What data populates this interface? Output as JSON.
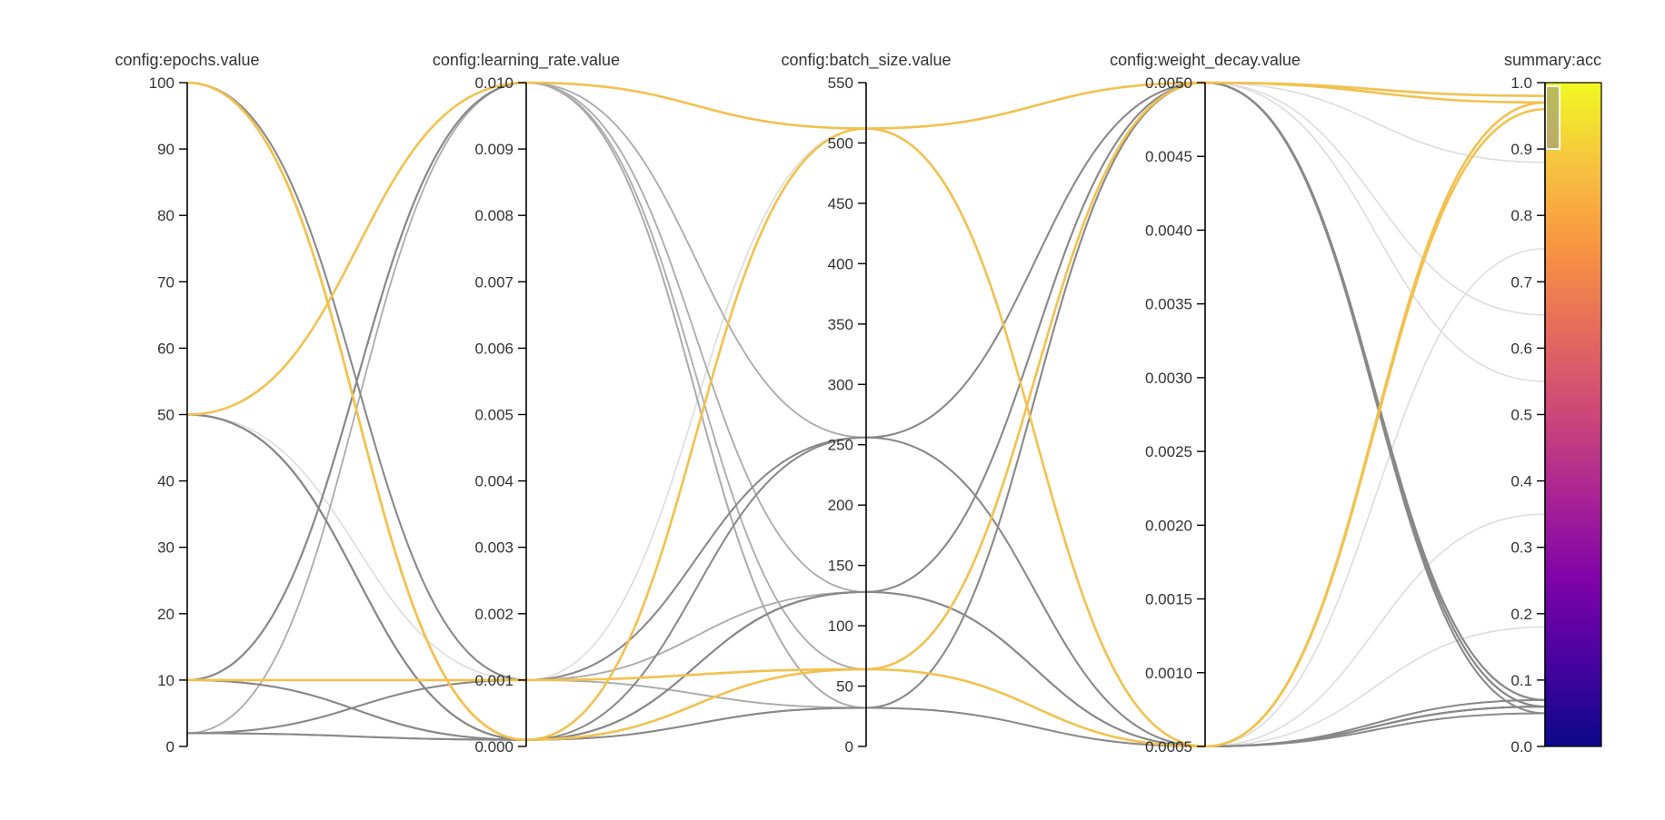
{
  "chart_data": {
    "type": "parallel-coordinates",
    "axes": [
      {
        "key": "epochs",
        "label": "config:epochs.value",
        "range": [
          0,
          100
        ],
        "ticks": [
          "0",
          "10",
          "20",
          "30",
          "40",
          "50",
          "60",
          "70",
          "80",
          "90",
          "100"
        ]
      },
      {
        "key": "learning_rate",
        "label": "config:learning_rate.value",
        "range": [
          0,
          0.01
        ],
        "ticks": [
          "0.000",
          "0.001",
          "0.002",
          "0.003",
          "0.004",
          "0.005",
          "0.006",
          "0.007",
          "0.008",
          "0.009",
          "0.010"
        ]
      },
      {
        "key": "batch_size",
        "label": "config:batch_size.value",
        "range": [
          0,
          550
        ],
        "ticks": [
          "0",
          "50",
          "100",
          "150",
          "200",
          "250",
          "300",
          "350",
          "400",
          "450",
          "500",
          "550"
        ]
      },
      {
        "key": "weight_decay",
        "label": "config:weight_decay.value",
        "range": [
          0.0005,
          0.005
        ],
        "ticks": [
          "0.0005",
          "0.0010",
          "0.0015",
          "0.0020",
          "0.0025",
          "0.0030",
          "0.0035",
          "0.0040",
          "0.0045",
          "0.0050"
        ]
      },
      {
        "key": "acc",
        "label": "summary:acc",
        "range": [
          0,
          1
        ],
        "ticks": [
          "0.0",
          "0.1",
          "0.2",
          "0.3",
          "0.4",
          "0.5",
          "0.6",
          "0.7",
          "0.8",
          "0.9",
          "1.0"
        ]
      }
    ],
    "colorscale": {
      "metric": "summary:acc",
      "range": [
        0,
        1
      ],
      "stops": [
        "#0d0887",
        "#46039f",
        "#7e03a8",
        "#a92395",
        "#cc4778",
        "#e56b5d",
        "#f89441",
        "#f7c240",
        "#f0f921"
      ]
    },
    "selection": {
      "axis": "acc",
      "range": [
        0.9,
        1.0
      ]
    },
    "colors": {
      "selected": "#f2c14e",
      "highlight": "#888888",
      "mid": "#aaaaaa",
      "faint": "#dcdcdc"
    },
    "runs": [
      {
        "epochs": 10,
        "learning_rate": 0.001,
        "batch_size": 64,
        "weight_decay": 0.005,
        "acc": 0.98,
        "style": "selected"
      },
      {
        "epochs": 50,
        "learning_rate": 0.01,
        "batch_size": 512,
        "weight_decay": 0.0005,
        "acc": 0.97,
        "style": "selected"
      },
      {
        "epochs": 100,
        "learning_rate": 0.0001,
        "batch_size": 512,
        "weight_decay": 0.005,
        "acc": 0.97,
        "style": "selected"
      },
      {
        "epochs": 100,
        "learning_rate": 0.0001,
        "batch_size": 64,
        "weight_decay": 0.0005,
        "acc": 0.96,
        "style": "selected"
      },
      {
        "epochs": 2,
        "learning_rate": 0.0001,
        "batch_size": 32,
        "weight_decay": 0.0005,
        "acc": 0.06,
        "style": "highlight"
      },
      {
        "epochs": 2,
        "learning_rate": 0.0001,
        "batch_size": 512,
        "weight_decay": 0.005,
        "acc": 0.07,
        "style": "highlight"
      },
      {
        "epochs": 2,
        "learning_rate": 0.001,
        "batch_size": 256,
        "weight_decay": 0.005,
        "acc": 0.05,
        "style": "highlight"
      },
      {
        "epochs": 10,
        "learning_rate": 0.01,
        "batch_size": 512,
        "weight_decay": 0.0005,
        "acc": 0.06,
        "style": "highlight"
      },
      {
        "epochs": 10,
        "learning_rate": 0.01,
        "batch_size": 512,
        "weight_decay": 0.005,
        "acc": 0.07,
        "style": "highlight"
      },
      {
        "epochs": 10,
        "learning_rate": 0.0001,
        "batch_size": 128,
        "weight_decay": 0.0005,
        "acc": 0.06,
        "style": "highlight"
      },
      {
        "epochs": 10,
        "learning_rate": 0.0001,
        "batch_size": 64,
        "weight_decay": 0.005,
        "acc": 0.06,
        "style": "highlight"
      },
      {
        "epochs": 50,
        "learning_rate": 0.0001,
        "batch_size": 32,
        "weight_decay": 0.005,
        "acc": 0.07,
        "style": "highlight"
      },
      {
        "epochs": 50,
        "learning_rate": 0.0001,
        "batch_size": 512,
        "weight_decay": 0.0005,
        "acc": 0.06,
        "style": "highlight"
      },
      {
        "epochs": 50,
        "learning_rate": 0.0001,
        "batch_size": 256,
        "weight_decay": 0.0005,
        "acc": 0.05,
        "style": "highlight"
      },
      {
        "epochs": 50,
        "learning_rate": 0.0001,
        "batch_size": 128,
        "weight_decay": 0.005,
        "acc": 0.06,
        "style": "highlight"
      },
      {
        "epochs": 100,
        "learning_rate": 0.001,
        "batch_size": 64,
        "weight_decay": 0.005,
        "acc": 0.06,
        "style": "highlight"
      },
      {
        "epochs": 100,
        "learning_rate": 0.0001,
        "batch_size": 128,
        "weight_decay": 0.0005,
        "acc": 0.07,
        "style": "highlight"
      },
      {
        "epochs": 2,
        "learning_rate": 0.01,
        "batch_size": 256,
        "weight_decay": 0.005,
        "acc": 0.06,
        "style": "mid"
      },
      {
        "epochs": 50,
        "learning_rate": 0.01,
        "batch_size": 128,
        "weight_decay": 0.005,
        "acc": 0.06,
        "style": "mid"
      },
      {
        "epochs": 10,
        "learning_rate": 0.01,
        "batch_size": 64,
        "weight_decay": 0.0005,
        "acc": 0.07,
        "style": "mid"
      },
      {
        "epochs": 50,
        "learning_rate": 0.01,
        "batch_size": 32,
        "weight_decay": 0.005,
        "acc": 0.05,
        "style": "mid"
      },
      {
        "epochs": 10,
        "learning_rate": 0.01,
        "batch_size": 32,
        "weight_decay": 0.0005,
        "acc": 0.06,
        "style": "mid"
      },
      {
        "epochs": 100,
        "learning_rate": 0.001,
        "batch_size": 32,
        "weight_decay": 0.005,
        "acc": 0.06,
        "style": "mid"
      },
      {
        "epochs": 2,
        "learning_rate": 0.001,
        "batch_size": 128,
        "weight_decay": 0.005,
        "acc": 0.07,
        "style": "mid"
      },
      {
        "epochs": 10,
        "learning_rate": 0.001,
        "batch_size": 256,
        "weight_decay": 0.0005,
        "acc": 0.06,
        "style": "mid"
      },
      {
        "epochs": 2,
        "learning_rate": 0.001,
        "batch_size": 64,
        "weight_decay": 0.005,
        "acc": 0.55,
        "style": "faint"
      },
      {
        "epochs": 2,
        "learning_rate": 0.001,
        "batch_size": 256,
        "weight_decay": 0.0005,
        "acc": 0.35,
        "style": "faint"
      },
      {
        "epochs": 2,
        "learning_rate": 0.001,
        "batch_size": 128,
        "weight_decay": 0.0005,
        "acc": 0.75,
        "style": "faint"
      },
      {
        "epochs": 50,
        "learning_rate": 0.001,
        "batch_size": 256,
        "weight_decay": 0.005,
        "acc": 0.88,
        "style": "faint"
      },
      {
        "epochs": 100,
        "learning_rate": 0.001,
        "batch_size": 32,
        "weight_decay": 0.0005,
        "acc": 0.18,
        "style": "faint"
      },
      {
        "epochs": 10,
        "learning_rate": 0.001,
        "batch_size": 512,
        "weight_decay": 0.005,
        "acc": 0.65,
        "style": "faint"
      }
    ]
  }
}
